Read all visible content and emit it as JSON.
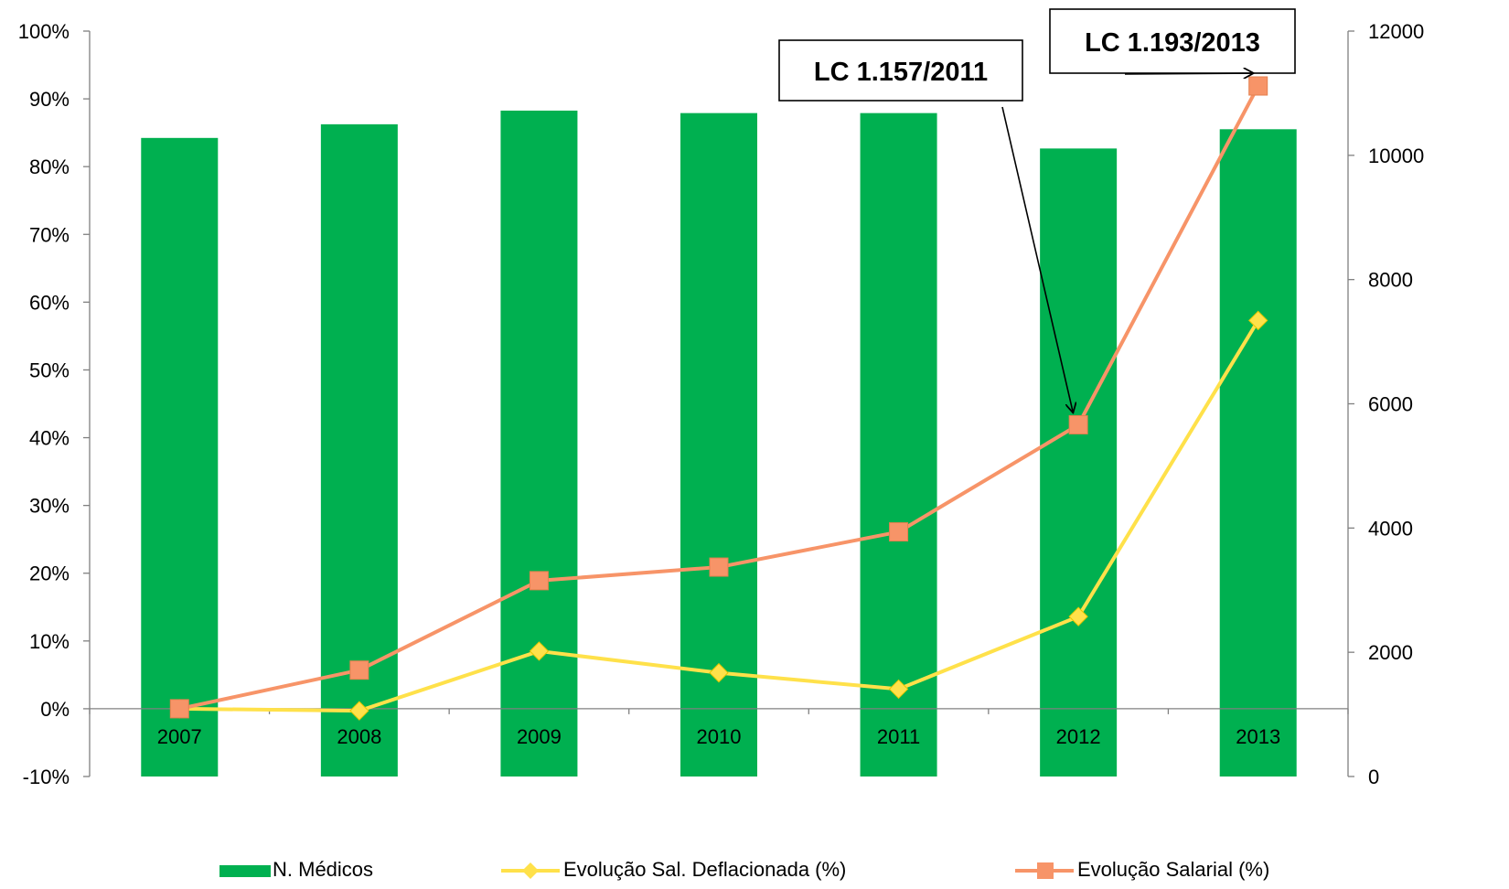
{
  "chart_data": {
    "type": "bar",
    "title": "",
    "categories": [
      "2007",
      "2008",
      "2009",
      "2010",
      "2011",
      "2012",
      "2013"
    ],
    "y_left": {
      "ylim": [
        -0.1,
        1.0
      ],
      "ticks": [
        "-10%",
        "0%",
        "10%",
        "20%",
        "30%",
        "40%",
        "50%",
        "60%",
        "70%",
        "80%",
        "90%",
        "100%"
      ]
    },
    "y_right": {
      "ylim": [
        0,
        12000
      ],
      "ticks": [
        "0",
        "2000",
        "4000",
        "6000",
        "8000",
        "10000",
        "12000"
      ]
    },
    "series": [
      {
        "name": "N. Médicos",
        "type": "bar",
        "axis": "right",
        "color": "#00B050",
        "values": [
          10280,
          10500,
          10720,
          10680,
          10680,
          10110,
          10420
        ]
      },
      {
        "name": "Evolução Sal. Deflacionada (%)",
        "type": "line",
        "axis": "left",
        "color": "#FFE14A",
        "marker": "diamond",
        "values": [
          0.0,
          -0.003,
          0.085,
          0.053,
          0.029,
          0.136,
          0.573
        ]
      },
      {
        "name": "Evolução Salarial (%)",
        "type": "line",
        "axis": "left",
        "color": "#F79468",
        "marker": "square",
        "values": [
          0.0,
          0.057,
          0.189,
          0.209,
          0.261,
          0.419,
          0.919
        ]
      }
    ],
    "annotations": [
      {
        "text": "LC 1.157/2011",
        "points_to": "2012"
      },
      {
        "text": "LC 1.193/2013",
        "points_to": "2013"
      }
    ],
    "legend_position": "bottom",
    "grid": false
  }
}
